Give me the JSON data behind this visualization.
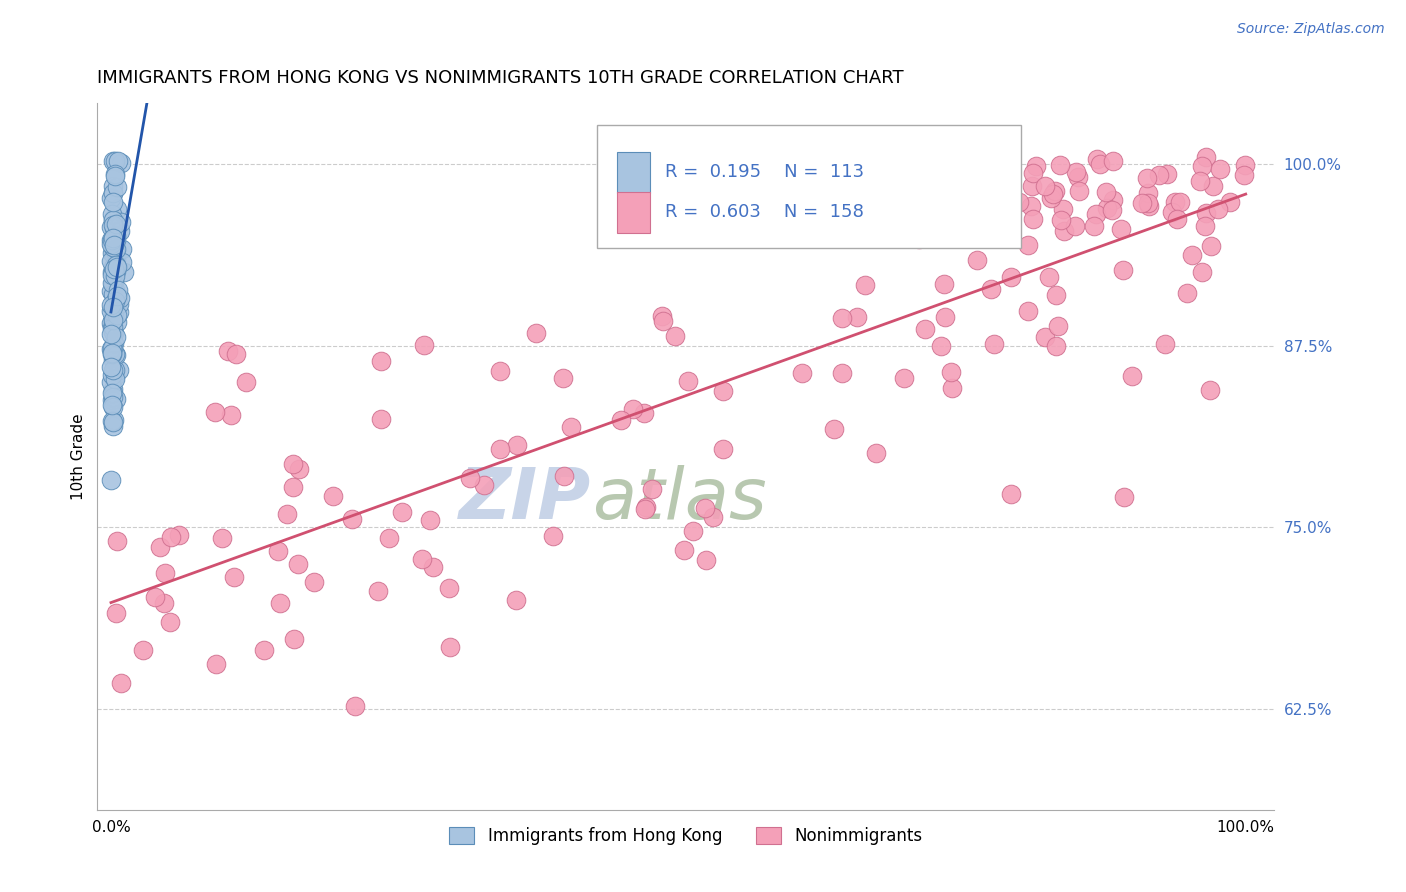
{
  "title": "IMMIGRANTS FROM HONG KONG VS NONIMMIGRANTS 10TH GRADE CORRELATION CHART",
  "source_text": "Source: ZipAtlas.com",
  "ylabel": "10th Grade",
  "blue_R": 0.195,
  "blue_N": 113,
  "pink_R": 0.603,
  "pink_N": 158,
  "blue_color": "#a8c4e0",
  "blue_edge": "#5b8db8",
  "blue_line_color": "#2255aa",
  "pink_color": "#f4a0b8",
  "pink_edge": "#d07090",
  "pink_line_color": "#d05070",
  "title_fontsize": 13,
  "axis_label_fontsize": 11,
  "source_fontsize": 10,
  "watermark_ZIP_color": "#c8d4e8",
  "watermark_atlas_color": "#b8c8b0"
}
